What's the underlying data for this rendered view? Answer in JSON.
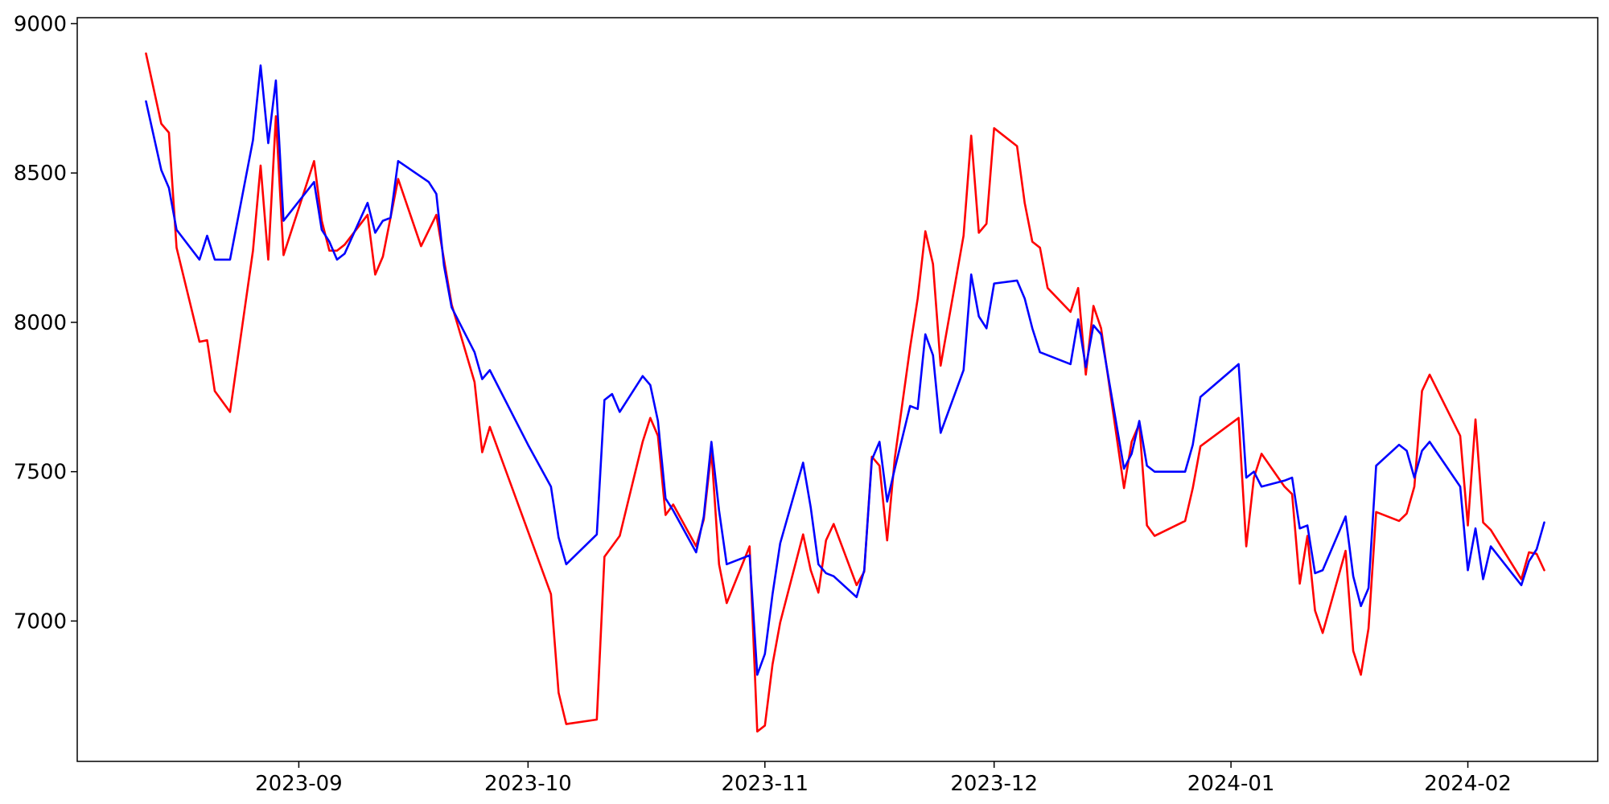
{
  "chart_data": {
    "type": "line",
    "title": "",
    "xlabel": "",
    "ylabel": "",
    "grid": false,
    "legend": "none",
    "xlim": [
      "2023-08-03",
      "2024-02-18"
    ],
    "ylim": [
      6530,
      9020
    ],
    "x_ticks": [
      {
        "date": "2023-09-01",
        "label": "2023-09"
      },
      {
        "date": "2023-10-01",
        "label": "2023-10"
      },
      {
        "date": "2023-11-01",
        "label": "2023-11"
      },
      {
        "date": "2023-12-01",
        "label": "2023-12"
      },
      {
        "date": "2024-01-01",
        "label": "2024-01"
      },
      {
        "date": "2024-02-01",
        "label": "2024-02"
      }
    ],
    "y_ticks": [
      {
        "value": 7000,
        "label": "7000"
      },
      {
        "value": 7500,
        "label": "7500"
      },
      {
        "value": 8000,
        "label": "8000"
      },
      {
        "value": 8500,
        "label": "8500"
      },
      {
        "value": 9000,
        "label": "9000"
      }
    ],
    "series": [
      {
        "color": "#ff0000",
        "points": [
          [
            "2023-08-12",
            8900
          ],
          [
            "2023-08-14",
            8665
          ],
          [
            "2023-08-15",
            8635
          ],
          [
            "2023-08-16",
            8250
          ],
          [
            "2023-08-19",
            7935
          ],
          [
            "2023-08-20",
            7940
          ],
          [
            "2023-08-21",
            7770
          ],
          [
            "2023-08-23",
            7700
          ],
          [
            "2023-08-26",
            8240
          ],
          [
            "2023-08-27",
            8525
          ],
          [
            "2023-08-28",
            8210
          ],
          [
            "2023-08-29",
            8690
          ],
          [
            "2023-08-30",
            8225
          ],
          [
            "2023-09-03",
            8540
          ],
          [
            "2023-09-04",
            8340
          ],
          [
            "2023-09-05",
            8240
          ],
          [
            "2023-09-06",
            8240
          ],
          [
            "2023-09-07",
            8260
          ],
          [
            "2023-09-10",
            8360
          ],
          [
            "2023-09-11",
            8160
          ],
          [
            "2023-09-12",
            8220
          ],
          [
            "2023-09-14",
            8480
          ],
          [
            "2023-09-17",
            8255
          ],
          [
            "2023-09-19",
            8360
          ],
          [
            "2023-09-21",
            8060
          ],
          [
            "2023-09-24",
            7800
          ],
          [
            "2023-09-25",
            7565
          ],
          [
            "2023-09-26",
            7650
          ],
          [
            "2023-10-04",
            7090
          ],
          [
            "2023-10-05",
            6760
          ],
          [
            "2023-10-06",
            6655
          ],
          [
            "2023-10-10",
            6670
          ],
          [
            "2023-10-11",
            7215
          ],
          [
            "2023-10-13",
            7285
          ],
          [
            "2023-10-16",
            7600
          ],
          [
            "2023-10-17",
            7680
          ],
          [
            "2023-10-18",
            7620
          ],
          [
            "2023-10-19",
            7355
          ],
          [
            "2023-10-20",
            7390
          ],
          [
            "2023-10-23",
            7250
          ],
          [
            "2023-10-24",
            7340
          ],
          [
            "2023-10-25",
            7570
          ],
          [
            "2023-10-26",
            7190
          ],
          [
            "2023-10-27",
            7060
          ],
          [
            "2023-10-30",
            7250
          ],
          [
            "2023-10-31",
            6630
          ],
          [
            "2023-11-01",
            6650
          ],
          [
            "2023-11-02",
            6855
          ],
          [
            "2023-11-03",
            6995
          ],
          [
            "2023-11-06",
            7290
          ],
          [
            "2023-11-07",
            7170
          ],
          [
            "2023-11-08",
            7095
          ],
          [
            "2023-11-09",
            7270
          ],
          [
            "2023-11-10",
            7325
          ],
          [
            "2023-11-13",
            7120
          ],
          [
            "2023-11-14",
            7165
          ],
          [
            "2023-11-15",
            7550
          ],
          [
            "2023-11-16",
            7520
          ],
          [
            "2023-11-17",
            7270
          ],
          [
            "2023-11-18",
            7545
          ],
          [
            "2023-11-20",
            7915
          ],
          [
            "2023-11-21",
            8080
          ],
          [
            "2023-11-22",
            8305
          ],
          [
            "2023-11-23",
            8195
          ],
          [
            "2023-11-24",
            7855
          ],
          [
            "2023-11-27",
            8290
          ],
          [
            "2023-11-28",
            8625
          ],
          [
            "2023-11-29",
            8300
          ],
          [
            "2023-11-30",
            8330
          ],
          [
            "2023-12-01",
            8650
          ],
          [
            "2023-12-04",
            8590
          ],
          [
            "2023-12-05",
            8400
          ],
          [
            "2023-12-06",
            8270
          ],
          [
            "2023-12-07",
            8250
          ],
          [
            "2023-12-08",
            8115
          ],
          [
            "2023-12-11",
            8035
          ],
          [
            "2023-12-12",
            8115
          ],
          [
            "2023-12-13",
            7825
          ],
          [
            "2023-12-14",
            8055
          ],
          [
            "2023-12-15",
            7980
          ],
          [
            "2023-12-18",
            7445
          ],
          [
            "2023-12-19",
            7600
          ],
          [
            "2023-12-20",
            7660
          ],
          [
            "2023-12-21",
            7320
          ],
          [
            "2023-12-22",
            7285
          ],
          [
            "2023-12-26",
            7335
          ],
          [
            "2023-12-27",
            7445
          ],
          [
            "2023-12-28",
            7585
          ],
          [
            "2024-01-02",
            7680
          ],
          [
            "2024-01-03",
            7250
          ],
          [
            "2024-01-04",
            7480
          ],
          [
            "2024-01-05",
            7560
          ],
          [
            "2024-01-08",
            7450
          ],
          [
            "2024-01-09",
            7425
          ],
          [
            "2024-01-10",
            7125
          ],
          [
            "2024-01-11",
            7285
          ],
          [
            "2024-01-12",
            7035
          ],
          [
            "2024-01-13",
            6960
          ],
          [
            "2024-01-16",
            7235
          ],
          [
            "2024-01-17",
            6900
          ],
          [
            "2024-01-18",
            6820
          ],
          [
            "2024-01-19",
            6975
          ],
          [
            "2024-01-20",
            7365
          ],
          [
            "2024-01-23",
            7335
          ],
          [
            "2024-01-24",
            7360
          ],
          [
            "2024-01-25",
            7450
          ],
          [
            "2024-01-26",
            7770
          ],
          [
            "2024-01-27",
            7825
          ],
          [
            "2024-01-31",
            7620
          ],
          [
            "2024-02-01",
            7320
          ],
          [
            "2024-02-02",
            7675
          ],
          [
            "2024-02-03",
            7330
          ],
          [
            "2024-02-04",
            7305
          ],
          [
            "2024-02-08",
            7140
          ],
          [
            "2024-02-09",
            7230
          ],
          [
            "2024-02-10",
            7225
          ],
          [
            "2024-02-11",
            7170
          ]
        ]
      },
      {
        "color": "#0000ff",
        "points": [
          [
            "2023-08-12",
            8740
          ],
          [
            "2023-08-14",
            8510
          ],
          [
            "2023-08-15",
            8450
          ],
          [
            "2023-08-16",
            8310
          ],
          [
            "2023-08-19",
            8210
          ],
          [
            "2023-08-20",
            8290
          ],
          [
            "2023-08-21",
            8210
          ],
          [
            "2023-08-23",
            8210
          ],
          [
            "2023-08-26",
            8610
          ],
          [
            "2023-08-27",
            8860
          ],
          [
            "2023-08-28",
            8600
          ],
          [
            "2023-08-29",
            8810
          ],
          [
            "2023-08-30",
            8340
          ],
          [
            "2023-09-03",
            8470
          ],
          [
            "2023-09-04",
            8310
          ],
          [
            "2023-09-05",
            8270
          ],
          [
            "2023-09-06",
            8210
          ],
          [
            "2023-09-07",
            8230
          ],
          [
            "2023-09-10",
            8400
          ],
          [
            "2023-09-11",
            8300
          ],
          [
            "2023-09-12",
            8340
          ],
          [
            "2023-09-13",
            8350
          ],
          [
            "2023-09-14",
            8540
          ],
          [
            "2023-09-18",
            8470
          ],
          [
            "2023-09-19",
            8430
          ],
          [
            "2023-09-20",
            8190
          ],
          [
            "2023-09-21",
            8050
          ],
          [
            "2023-09-24",
            7900
          ],
          [
            "2023-09-25",
            7810
          ],
          [
            "2023-09-26",
            7840
          ],
          [
            "2023-10-01",
            7590
          ],
          [
            "2023-10-04",
            7450
          ],
          [
            "2023-10-05",
            7280
          ],
          [
            "2023-10-06",
            7190
          ],
          [
            "2023-10-10",
            7290
          ],
          [
            "2023-10-11",
            7740
          ],
          [
            "2023-10-12",
            7760
          ],
          [
            "2023-10-13",
            7700
          ],
          [
            "2023-10-16",
            7820
          ],
          [
            "2023-10-17",
            7790
          ],
          [
            "2023-10-18",
            7670
          ],
          [
            "2023-10-19",
            7410
          ],
          [
            "2023-10-20",
            7370
          ],
          [
            "2023-10-23",
            7230
          ],
          [
            "2023-10-24",
            7350
          ],
          [
            "2023-10-25",
            7600
          ],
          [
            "2023-10-26",
            7370
          ],
          [
            "2023-10-27",
            7190
          ],
          [
            "2023-10-30",
            7220
          ],
          [
            "2023-10-31",
            6820
          ],
          [
            "2023-11-01",
            6890
          ],
          [
            "2023-11-02",
            7090
          ],
          [
            "2023-11-03",
            7260
          ],
          [
            "2023-11-06",
            7530
          ],
          [
            "2023-11-07",
            7380
          ],
          [
            "2023-11-08",
            7190
          ],
          [
            "2023-11-09",
            7160
          ],
          [
            "2023-11-10",
            7150
          ],
          [
            "2023-11-13",
            7080
          ],
          [
            "2023-11-14",
            7170
          ],
          [
            "2023-11-15",
            7540
          ],
          [
            "2023-11-16",
            7600
          ],
          [
            "2023-11-17",
            7400
          ],
          [
            "2023-11-18",
            7510
          ],
          [
            "2023-11-20",
            7720
          ],
          [
            "2023-11-21",
            7710
          ],
          [
            "2023-11-22",
            7960
          ],
          [
            "2023-11-23",
            7890
          ],
          [
            "2023-11-24",
            7630
          ],
          [
            "2023-11-27",
            7840
          ],
          [
            "2023-11-28",
            8160
          ],
          [
            "2023-11-29",
            8020
          ],
          [
            "2023-11-30",
            7980
          ],
          [
            "2023-12-01",
            8130
          ],
          [
            "2023-12-04",
            8140
          ],
          [
            "2023-12-05",
            8080
          ],
          [
            "2023-12-06",
            7980
          ],
          [
            "2023-12-07",
            7900
          ],
          [
            "2023-12-11",
            7860
          ],
          [
            "2023-12-12",
            8010
          ],
          [
            "2023-12-13",
            7850
          ],
          [
            "2023-12-14",
            7990
          ],
          [
            "2023-12-15",
            7960
          ],
          [
            "2023-12-18",
            7510
          ],
          [
            "2023-12-19",
            7560
          ],
          [
            "2023-12-20",
            7670
          ],
          [
            "2023-12-21",
            7520
          ],
          [
            "2023-12-22",
            7500
          ],
          [
            "2023-12-26",
            7500
          ],
          [
            "2023-12-27",
            7590
          ],
          [
            "2023-12-28",
            7750
          ],
          [
            "2024-01-02",
            7860
          ],
          [
            "2024-01-03",
            7480
          ],
          [
            "2024-01-04",
            7500
          ],
          [
            "2024-01-05",
            7450
          ],
          [
            "2024-01-08",
            7470
          ],
          [
            "2024-01-09",
            7480
          ],
          [
            "2024-01-10",
            7310
          ],
          [
            "2024-01-11",
            7320
          ],
          [
            "2024-01-12",
            7160
          ],
          [
            "2024-01-13",
            7170
          ],
          [
            "2024-01-16",
            7350
          ],
          [
            "2024-01-17",
            7150
          ],
          [
            "2024-01-18",
            7050
          ],
          [
            "2024-01-19",
            7110
          ],
          [
            "2024-01-20",
            7520
          ],
          [
            "2024-01-23",
            7590
          ],
          [
            "2024-01-24",
            7570
          ],
          [
            "2024-01-25",
            7480
          ],
          [
            "2024-01-26",
            7570
          ],
          [
            "2024-01-27",
            7600
          ],
          [
            "2024-01-31",
            7450
          ],
          [
            "2024-02-01",
            7170
          ],
          [
            "2024-02-02",
            7310
          ],
          [
            "2024-02-03",
            7140
          ],
          [
            "2024-02-04",
            7250
          ],
          [
            "2024-02-08",
            7120
          ],
          [
            "2024-02-09",
            7200
          ],
          [
            "2024-02-10",
            7240
          ],
          [
            "2024-02-11",
            7330
          ]
        ]
      }
    ]
  }
}
